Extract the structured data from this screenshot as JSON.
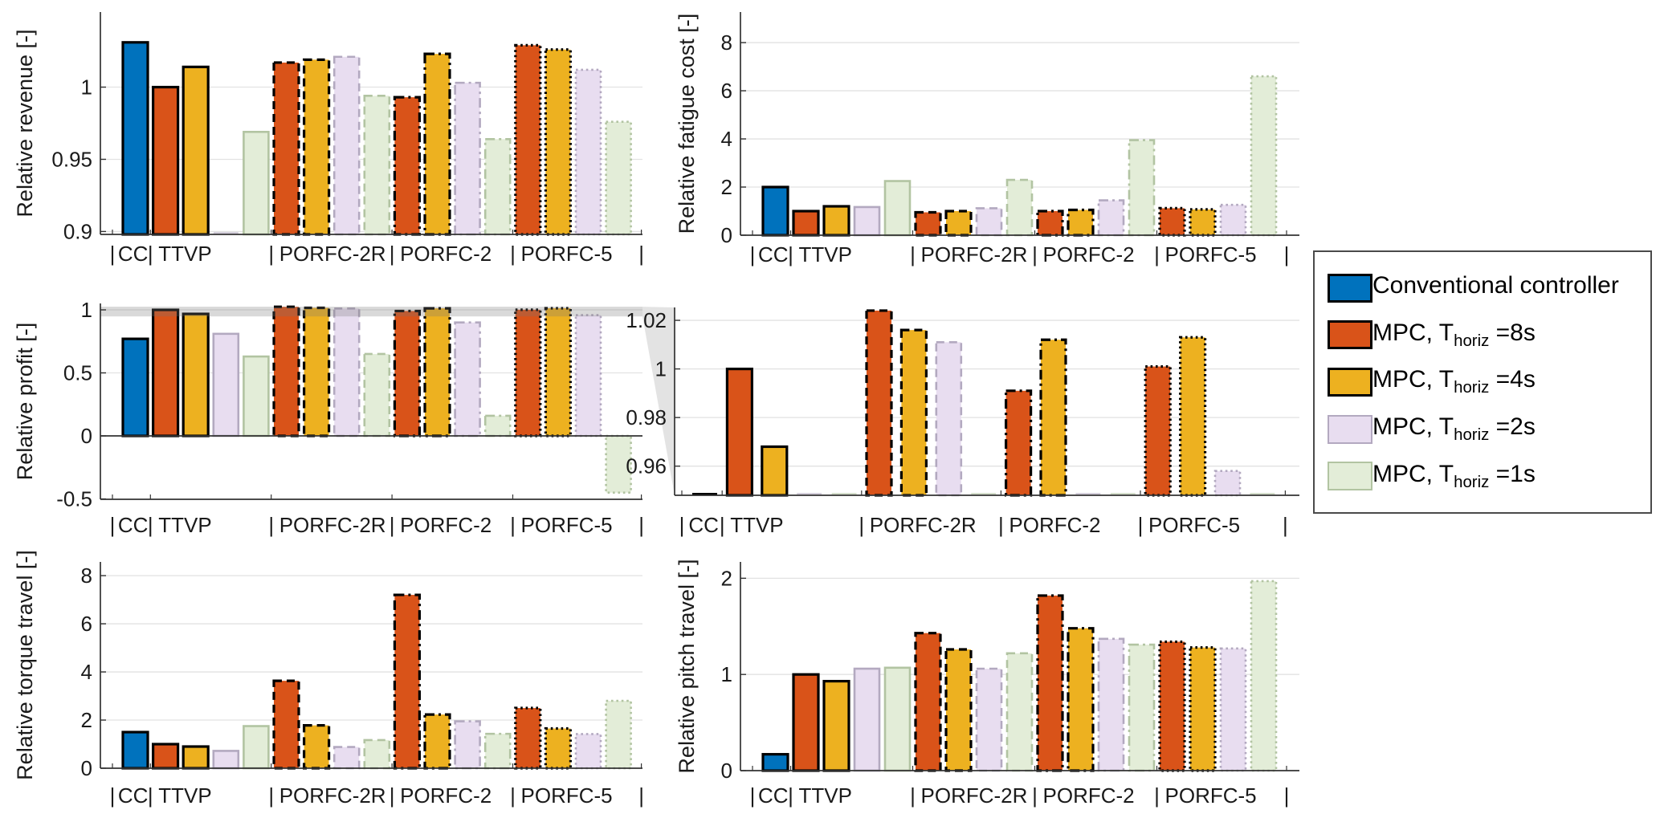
{
  "figure": {
    "background": "#ffffff",
    "axis_color": "#333333",
    "grid_color": "#e2e2e2",
    "band_color": "rgba(120,120,120,0.28)",
    "wedge_color": "#dcdcdc"
  },
  "separator": "|",
  "group_labels": [
    "CC",
    "TTVP",
    "PORFC-2R",
    "PORFC-2",
    "PORFC-5"
  ],
  "controllers": [
    {
      "key": "conv",
      "name": "Conventional controller",
      "color": "#0072BD",
      "border": "#000000",
      "pale": false
    },
    {
      "key": "mpc8",
      "name": "MPC, Thoriz=8s",
      "color": "#D95319",
      "border": "#000000",
      "pale": false
    },
    {
      "key": "mpc4",
      "name": "MPC, Thoriz=4s",
      "color": "#EDB120",
      "border": "#000000",
      "pale": false
    },
    {
      "key": "mpc2",
      "name": "MPC, Thoriz=2s",
      "color": "#E8DDF0",
      "border": "#B3A9C0",
      "pale": true
    },
    {
      "key": "mpc1",
      "name": "MPC, Thoriz=1s",
      "color": "#E3EDD8",
      "border": "#B2C4A2",
      "pale": true
    }
  ],
  "legend": {
    "items": [
      {
        "text_main": "Conventional controller",
        "text_sub": "",
        "text_suffix": "",
        "color": "#0072BD",
        "border": "#000000"
      },
      {
        "text_main": "MPC, T",
        "text_sub": "horiz",
        "text_suffix": " =8s",
        "color": "#D95319",
        "border": "#000000"
      },
      {
        "text_main": "MPC, T",
        "text_sub": "horiz",
        "text_suffix": " =4s",
        "color": "#EDB120",
        "border": "#000000"
      },
      {
        "text_main": "MPC, T",
        "text_sub": "horiz",
        "text_suffix": " =2s",
        "color": "#E8DDF0",
        "border": "#B3A9C0"
      },
      {
        "text_main": "MPC, T",
        "text_sub": "horiz",
        "text_suffix": " =1s",
        "color": "#E3EDD8",
        "border": "#B2C4A2"
      }
    ]
  },
  "chart_data": [
    {
      "id": "revenue",
      "type": "bar",
      "ylabel": "Relative revenue [-]",
      "ylim": [
        0.898,
        1.052
      ],
      "yticks": [
        {
          "v": 0.9,
          "label": "0.9"
        },
        {
          "v": 0.95,
          "label": "0.95"
        },
        {
          "v": 1,
          "label": "1"
        }
      ],
      "groups": [
        {
          "label": "CC",
          "bars": [
            {
              "series": "conv",
              "value": 1.031
            }
          ]
        },
        {
          "label": "TTVP",
          "bars": [
            {
              "series": "mpc8",
              "value": 1.0
            },
            {
              "series": "mpc4",
              "value": 1.014
            },
            {
              "series": "mpc2",
              "value": null
            },
            {
              "series": "mpc1",
              "value": 0.969
            }
          ]
        },
        {
          "label": "PORFC-2R",
          "bars": [
            {
              "series": "mpc8",
              "value": 1.017
            },
            {
              "series": "mpc4",
              "value": 1.019
            },
            {
              "series": "mpc2",
              "value": 1.021
            },
            {
              "series": "mpc1",
              "value": 0.994
            }
          ]
        },
        {
          "label": "PORFC-2",
          "bars": [
            {
              "series": "mpc8",
              "value": 0.993
            },
            {
              "series": "mpc4",
              "value": 1.023
            },
            {
              "series": "mpc2",
              "value": 1.003
            },
            {
              "series": "mpc1",
              "value": 0.964
            }
          ]
        },
        {
          "label": "PORFC-5",
          "bars": [
            {
              "series": "mpc8",
              "value": 1.029
            },
            {
              "series": "mpc4",
              "value": 1.026
            },
            {
              "series": "mpc2",
              "value": 1.012
            },
            {
              "series": "mpc1",
              "value": 0.976
            }
          ]
        }
      ]
    },
    {
      "id": "fatigue",
      "type": "bar",
      "ylabel": "Relative fatigue cost [-]",
      "ylim": [
        0,
        9.27
      ],
      "yticks": [
        {
          "v": 0,
          "label": "0"
        },
        {
          "v": 2,
          "label": "2"
        },
        {
          "v": 4,
          "label": "4"
        },
        {
          "v": 6,
          "label": "6"
        },
        {
          "v": 8,
          "label": "8"
        }
      ],
      "groups": [
        {
          "label": "CC",
          "bars": [
            {
              "series": "conv",
              "value": 2.0
            }
          ]
        },
        {
          "label": "TTVP",
          "bars": [
            {
              "series": "mpc8",
              "value": 1.0
            },
            {
              "series": "mpc4",
              "value": 1.2
            },
            {
              "series": "mpc2",
              "value": 1.17
            },
            {
              "series": "mpc1",
              "value": 2.25
            }
          ]
        },
        {
          "label": "PORFC-2R",
          "bars": [
            {
              "series": "mpc8",
              "value": 0.95
            },
            {
              "series": "mpc4",
              "value": 1.0
            },
            {
              "series": "mpc2",
              "value": 1.12
            },
            {
              "series": "mpc1",
              "value": 2.3
            }
          ]
        },
        {
          "label": "PORFC-2",
          "bars": [
            {
              "series": "mpc8",
              "value": 1.0
            },
            {
              "series": "mpc4",
              "value": 1.05
            },
            {
              "series": "mpc2",
              "value": 1.45
            },
            {
              "series": "mpc1",
              "value": 3.95
            }
          ]
        },
        {
          "label": "PORFC-5",
          "bars": [
            {
              "series": "mpc8",
              "value": 1.12
            },
            {
              "series": "mpc4",
              "value": 1.07
            },
            {
              "series": "mpc2",
              "value": 1.26
            },
            {
              "series": "mpc1",
              "value": 6.6
            }
          ]
        }
      ]
    },
    {
      "id": "profit",
      "type": "bar",
      "ylabel": "Relative profit [-]",
      "ylim": [
        -0.503,
        1.051
      ],
      "baseline": 0,
      "band": [
        0.948,
        1.025
      ],
      "yticks": [
        {
          "v": -0.5,
          "label": "-0.5"
        },
        {
          "v": 0,
          "label": "0"
        },
        {
          "v": 0.5,
          "label": "0.5"
        },
        {
          "v": 1,
          "label": "1"
        }
      ],
      "groups": [
        {
          "label": "CC",
          "bars": [
            {
              "series": "conv",
              "value": 0.77
            }
          ]
        },
        {
          "label": "TTVP",
          "bars": [
            {
              "series": "mpc8",
              "value": 1.0
            },
            {
              "series": "mpc4",
              "value": 0.968
            },
            {
              "series": "mpc2",
              "value": 0.81
            },
            {
              "series": "mpc1",
              "value": 0.63
            }
          ]
        },
        {
          "label": "PORFC-2R",
          "bars": [
            {
              "series": "mpc8",
              "value": 1.024
            },
            {
              "series": "mpc4",
              "value": 1.016
            },
            {
              "series": "mpc2",
              "value": 1.011
            },
            {
              "series": "mpc1",
              "value": 0.65
            }
          ]
        },
        {
          "label": "PORFC-2",
          "bars": [
            {
              "series": "mpc8",
              "value": 0.991
            },
            {
              "series": "mpc4",
              "value": 1.012
            },
            {
              "series": "mpc2",
              "value": 0.9
            },
            {
              "series": "mpc1",
              "value": 0.16
            }
          ]
        },
        {
          "label": "PORFC-5",
          "bars": [
            {
              "series": "mpc8",
              "value": 1.001
            },
            {
              "series": "mpc4",
              "value": 1.013
            },
            {
              "series": "mpc2",
              "value": 0.958
            },
            {
              "series": "mpc1",
              "value": -0.45
            }
          ]
        }
      ]
    },
    {
      "id": "inset",
      "type": "bar",
      "ylabel": "",
      "note": "zoomed view of Relative profit around 1",
      "ylim": [
        0.948,
        1.0253
      ],
      "yticks": [
        {
          "v": 0.96,
          "label": "0.96"
        },
        {
          "v": 0.98,
          "label": "0.98"
        },
        {
          "v": 1,
          "label": "1"
        },
        {
          "v": 1.02,
          "label": "1.02"
        }
      ],
      "groups": [
        {
          "label": "CC",
          "bars": [
            {
              "series": "conv",
              "value": 0.77
            }
          ]
        },
        {
          "label": "TTVP",
          "bars": [
            {
              "series": "mpc8",
              "value": 1.0
            },
            {
              "series": "mpc4",
              "value": 0.968
            },
            {
              "series": "mpc2",
              "value": 0.81
            },
            {
              "series": "mpc1",
              "value": 0.63
            }
          ]
        },
        {
          "label": "PORFC-2R",
          "bars": [
            {
              "series": "mpc8",
              "value": 1.024
            },
            {
              "series": "mpc4",
              "value": 1.016
            },
            {
              "series": "mpc2",
              "value": 1.011
            },
            {
              "series": "mpc1",
              "value": 0.65
            }
          ]
        },
        {
          "label": "PORFC-2",
          "bars": [
            {
              "series": "mpc8",
              "value": 0.991
            },
            {
              "series": "mpc4",
              "value": 1.012
            },
            {
              "series": "mpc2",
              "value": 0.9
            },
            {
              "series": "mpc1",
              "value": 0.16
            }
          ]
        },
        {
          "label": "PORFC-5",
          "bars": [
            {
              "series": "mpc8",
              "value": 1.001
            },
            {
              "series": "mpc4",
              "value": 1.013
            },
            {
              "series": "mpc2",
              "value": 0.958
            },
            {
              "series": "mpc1",
              "value": -0.45
            }
          ]
        }
      ]
    },
    {
      "id": "torque",
      "type": "bar",
      "ylabel": "Relative torque travel [-]",
      "ylim": [
        0,
        8.57
      ],
      "yticks": [
        {
          "v": 0,
          "label": "0"
        },
        {
          "v": 2,
          "label": "2"
        },
        {
          "v": 4,
          "label": "4"
        },
        {
          "v": 6,
          "label": "6"
        },
        {
          "v": 8,
          "label": "8"
        }
      ],
      "groups": [
        {
          "label": "CC",
          "bars": [
            {
              "series": "conv",
              "value": 1.5
            }
          ]
        },
        {
          "label": "TTVP",
          "bars": [
            {
              "series": "mpc8",
              "value": 1.0
            },
            {
              "series": "mpc4",
              "value": 0.9
            },
            {
              "series": "mpc2",
              "value": 0.72
            },
            {
              "series": "mpc1",
              "value": 1.75
            }
          ]
        },
        {
          "label": "PORFC-2R",
          "bars": [
            {
              "series": "mpc8",
              "value": 3.63
            },
            {
              "series": "mpc4",
              "value": 1.78
            },
            {
              "series": "mpc2",
              "value": 0.88
            },
            {
              "series": "mpc1",
              "value": 1.17
            }
          ]
        },
        {
          "label": "PORFC-2",
          "bars": [
            {
              "series": "mpc8",
              "value": 7.2
            },
            {
              "series": "mpc4",
              "value": 2.23
            },
            {
              "series": "mpc2",
              "value": 1.95
            },
            {
              "series": "mpc1",
              "value": 1.43
            }
          ]
        },
        {
          "label": "PORFC-5",
          "bars": [
            {
              "series": "mpc8",
              "value": 2.5
            },
            {
              "series": "mpc4",
              "value": 1.65
            },
            {
              "series": "mpc2",
              "value": 1.42
            },
            {
              "series": "mpc1",
              "value": 2.8
            }
          ]
        }
      ]
    },
    {
      "id": "pitch",
      "type": "bar",
      "ylabel": "Relative pitch travel [-]",
      "ylim": [
        0,
        2.17
      ],
      "yticks": [
        {
          "v": 0,
          "label": "0"
        },
        {
          "v": 1,
          "label": "1"
        },
        {
          "v": 2,
          "label": "2"
        }
      ],
      "groups": [
        {
          "label": "CC",
          "bars": [
            {
              "series": "conv",
              "value": 0.17
            }
          ]
        },
        {
          "label": "TTVP",
          "bars": [
            {
              "series": "mpc8",
              "value": 1.0
            },
            {
              "series": "mpc4",
              "value": 0.93
            },
            {
              "series": "mpc2",
              "value": 1.06
            },
            {
              "series": "mpc1",
              "value": 1.07
            }
          ]
        },
        {
          "label": "PORFC-2R",
          "bars": [
            {
              "series": "mpc8",
              "value": 1.43
            },
            {
              "series": "mpc4",
              "value": 1.26
            },
            {
              "series": "mpc2",
              "value": 1.06
            },
            {
              "series": "mpc1",
              "value": 1.22
            }
          ]
        },
        {
          "label": "PORFC-2",
          "bars": [
            {
              "series": "mpc8",
              "value": 1.82
            },
            {
              "series": "mpc4",
              "value": 1.48
            },
            {
              "series": "mpc2",
              "value": 1.37
            },
            {
              "series": "mpc1",
              "value": 1.31
            }
          ]
        },
        {
          "label": "PORFC-5",
          "bars": [
            {
              "series": "mpc8",
              "value": 1.34
            },
            {
              "series": "mpc4",
              "value": 1.28
            },
            {
              "series": "mpc2",
              "value": 1.27
            },
            {
              "series": "mpc1",
              "value": 1.97
            }
          ]
        }
      ]
    }
  ]
}
